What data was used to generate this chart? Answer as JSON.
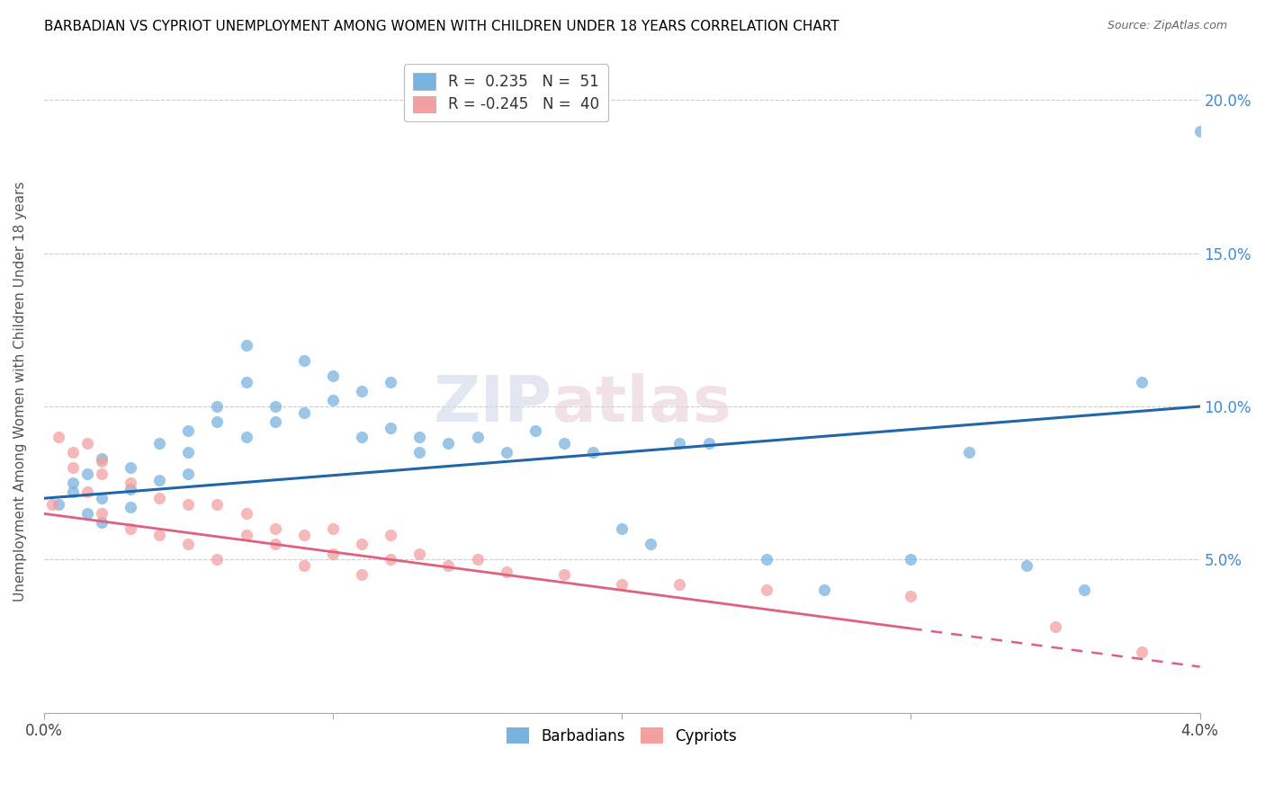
{
  "title": "BARBADIAN VS CYPRIOT UNEMPLOYMENT AMONG WOMEN WITH CHILDREN UNDER 18 YEARS CORRELATION CHART",
  "source": "Source: ZipAtlas.com",
  "ylabel": "Unemployment Among Women with Children Under 18 years",
  "barbadian_R": 0.235,
  "barbadian_N": 51,
  "cypriot_R": -0.245,
  "cypriot_N": 40,
  "blue_color": "#7ab3e0",
  "pink_color": "#f4a0a0",
  "blue_line_color": "#2266aa",
  "pink_line_color": "#e06080",
  "xlim": [
    0.0,
    0.04
  ],
  "ylim": [
    0.0,
    0.21
  ],
  "barbadian_x": [
    0.0005,
    0.001,
    0.001,
    0.0015,
    0.0015,
    0.002,
    0.002,
    0.002,
    0.003,
    0.003,
    0.003,
    0.004,
    0.004,
    0.005,
    0.005,
    0.005,
    0.006,
    0.006,
    0.007,
    0.007,
    0.007,
    0.008,
    0.008,
    0.009,
    0.009,
    0.01,
    0.01,
    0.011,
    0.011,
    0.012,
    0.012,
    0.013,
    0.013,
    0.014,
    0.015,
    0.016,
    0.017,
    0.018,
    0.019,
    0.02,
    0.021,
    0.022,
    0.023,
    0.025,
    0.027,
    0.03,
    0.032,
    0.034,
    0.036,
    0.038,
    0.04
  ],
  "barbadian_y": [
    0.068,
    0.072,
    0.075,
    0.078,
    0.065,
    0.083,
    0.07,
    0.062,
    0.08,
    0.073,
    0.067,
    0.088,
    0.076,
    0.092,
    0.085,
    0.078,
    0.095,
    0.1,
    0.12,
    0.108,
    0.09,
    0.1,
    0.095,
    0.115,
    0.098,
    0.11,
    0.102,
    0.105,
    0.09,
    0.108,
    0.093,
    0.09,
    0.085,
    0.088,
    0.09,
    0.085,
    0.092,
    0.088,
    0.085,
    0.06,
    0.055,
    0.088,
    0.088,
    0.05,
    0.04,
    0.05,
    0.085,
    0.048,
    0.04,
    0.108,
    0.19
  ],
  "cypriot_x": [
    0.0003,
    0.0005,
    0.001,
    0.001,
    0.0015,
    0.0015,
    0.002,
    0.002,
    0.002,
    0.003,
    0.003,
    0.004,
    0.004,
    0.005,
    0.005,
    0.006,
    0.006,
    0.007,
    0.007,
    0.008,
    0.008,
    0.009,
    0.009,
    0.01,
    0.01,
    0.011,
    0.011,
    0.012,
    0.012,
    0.013,
    0.014,
    0.015,
    0.016,
    0.018,
    0.02,
    0.022,
    0.025,
    0.03,
    0.035,
    0.038
  ],
  "cypriot_y": [
    0.068,
    0.09,
    0.085,
    0.08,
    0.088,
    0.072,
    0.082,
    0.065,
    0.078,
    0.075,
    0.06,
    0.07,
    0.058,
    0.068,
    0.055,
    0.068,
    0.05,
    0.065,
    0.058,
    0.06,
    0.055,
    0.058,
    0.048,
    0.06,
    0.052,
    0.055,
    0.045,
    0.058,
    0.05,
    0.052,
    0.048,
    0.05,
    0.046,
    0.045,
    0.042,
    0.042,
    0.04,
    0.038,
    0.028,
    0.02
  ],
  "watermark_top": "ZIP",
  "watermark_bot": "atlas"
}
